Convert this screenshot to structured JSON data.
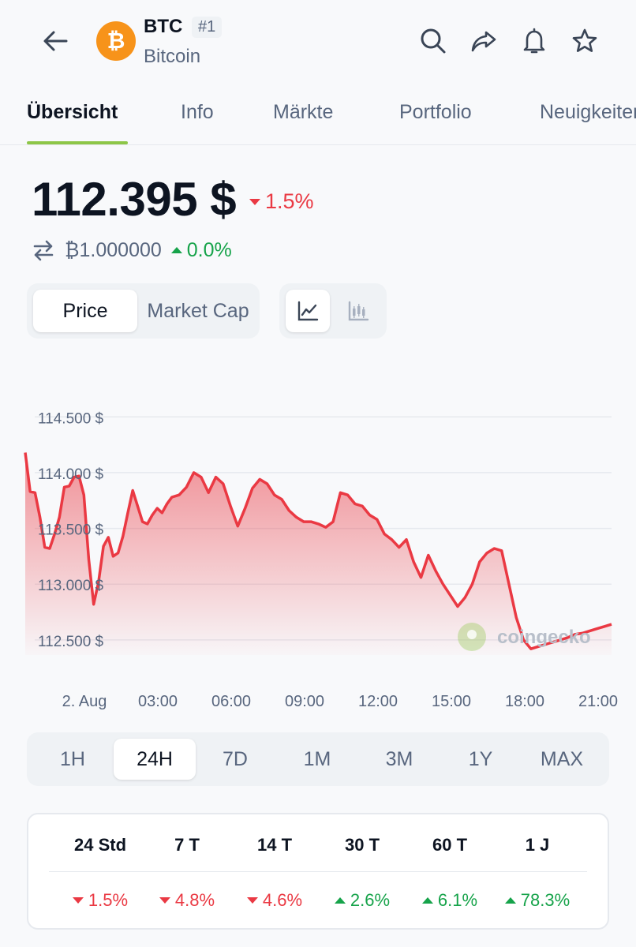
{
  "header": {
    "coin_symbol": "BTC",
    "rank": "#1",
    "coin_name": "Bitcoin",
    "coin_logo_glyph": "₿",
    "brand_color": "#f7931a",
    "icons": [
      "back-arrow-icon",
      "search-icon",
      "share-icon",
      "bell-icon",
      "star-icon"
    ]
  },
  "tabs": [
    {
      "label": "Übersicht",
      "active": true
    },
    {
      "label": "Info",
      "active": false
    },
    {
      "label": "Märkte",
      "active": false
    },
    {
      "label": "Portfolio",
      "active": false
    },
    {
      "label": "Neuigkeiten",
      "active": false
    }
  ],
  "price": {
    "value": "112.395 $",
    "change": "1.5%",
    "change_direction": "down",
    "btc_value": "₿1.000000",
    "btc_change": "0.0%",
    "btc_change_direction": "up"
  },
  "chart_toggle": {
    "options": [
      "Price",
      "Market Cap"
    ],
    "selected": "Price"
  },
  "chart_style_toggle": {
    "options": [
      "line-chart-icon",
      "candlestick-icon"
    ],
    "selected": "line-chart-icon"
  },
  "chart_data": {
    "type": "area",
    "x_tick_labels": [
      "2. Aug",
      "03:00",
      "06:00",
      "09:00",
      "12:00",
      "15:00",
      "18:00",
      "21:00"
    ],
    "y_tick_labels": [
      "114.500 $",
      "114.000 $",
      "113.500 $",
      "113.000 $",
      "112.500 $"
    ],
    "y_ticks": [
      114500,
      114000,
      113500,
      113000,
      112500
    ],
    "ylim": [
      112400,
      114700
    ],
    "xlim": [
      0,
      24
    ],
    "grid": true,
    "line_color": "#ea3943",
    "watermark": "coingecko",
    "x": [
      0,
      0.2,
      0.4,
      0.6,
      0.8,
      1.0,
      1.2,
      1.4,
      1.6,
      1.8,
      2.0,
      2.2,
      2.4,
      2.6,
      2.8,
      3.0,
      3.2,
      3.4,
      3.6,
      3.8,
      4.0,
      4.2,
      4.4,
      4.6,
      4.8,
      5.0,
      5.2,
      5.4,
      5.6,
      5.8,
      6.0,
      6.3,
      6.6,
      6.9,
      7.2,
      7.5,
      7.8,
      8.1,
      8.4,
      8.7,
      9.0,
      9.3,
      9.6,
      9.9,
      10.2,
      10.5,
      10.8,
      11.1,
      11.4,
      11.7,
      12.0,
      12.3,
      12.6,
      12.9,
      13.2,
      13.5,
      13.8,
      14.1,
      14.4,
      14.7,
      15.0,
      15.3,
      15.6,
      15.9,
      16.2,
      16.5,
      16.8,
      17.1,
      17.4,
      17.7,
      18.0,
      18.3,
      18.6,
      18.9,
      19.2,
      19.5,
      19.8,
      20.1,
      20.4,
      20.7,
      21.0,
      21.3,
      21.6,
      21.9,
      22.2,
      22.5,
      22.8,
      23.1,
      23.4,
      23.7,
      24.0
    ],
    "values": [
      114180,
      113830,
      113820,
      113600,
      113330,
      113320,
      113450,
      113600,
      113870,
      113880,
      113960,
      113970,
      113800,
      113220,
      112820,
      113020,
      113340,
      113420,
      113250,
      113280,
      113430,
      113640,
      113840,
      113700,
      113560,
      113540,
      113620,
      113680,
      113640,
      113720,
      113780,
      113800,
      113870,
      114000,
      113960,
      113820,
      113960,
      113900,
      113700,
      113520,
      113680,
      113860,
      113940,
      113900,
      113800,
      113760,
      113660,
      113600,
      113560,
      113560,
      113540,
      113510,
      113560,
      113820,
      113800,
      113720,
      113700,
      113620,
      113580,
      113450,
      113400,
      113330,
      113400,
      113200,
      113060,
      113260,
      113120,
      113000,
      112900,
      112800,
      112880,
      113000,
      113200,
      113280,
      113320,
      113300,
      113000,
      112700,
      112500,
      112420,
      112440,
      112460,
      112480,
      112500,
      112520,
      112550,
      112560,
      112580,
      112600,
      112620,
      112640
    ]
  },
  "time_ranges": {
    "options": [
      "1H",
      "24H",
      "7D",
      "1M",
      "3M",
      "1Y",
      "MAX"
    ],
    "selected": "24H"
  },
  "performance": {
    "columns": [
      {
        "label": "24 Std",
        "value": "1.5%",
        "direction": "down"
      },
      {
        "label": "7 T",
        "value": "4.8%",
        "direction": "down"
      },
      {
        "label": "14 T",
        "value": "4.6%",
        "direction": "down"
      },
      {
        "label": "30 T",
        "value": "2.6%",
        "direction": "up"
      },
      {
        "label": "60 T",
        "value": "6.1%",
        "direction": "up"
      },
      {
        "label": "1 J",
        "value": "78.3%",
        "direction": "up"
      }
    ],
    "colors": {
      "up": "#16a34a",
      "down": "#ea3943"
    }
  }
}
